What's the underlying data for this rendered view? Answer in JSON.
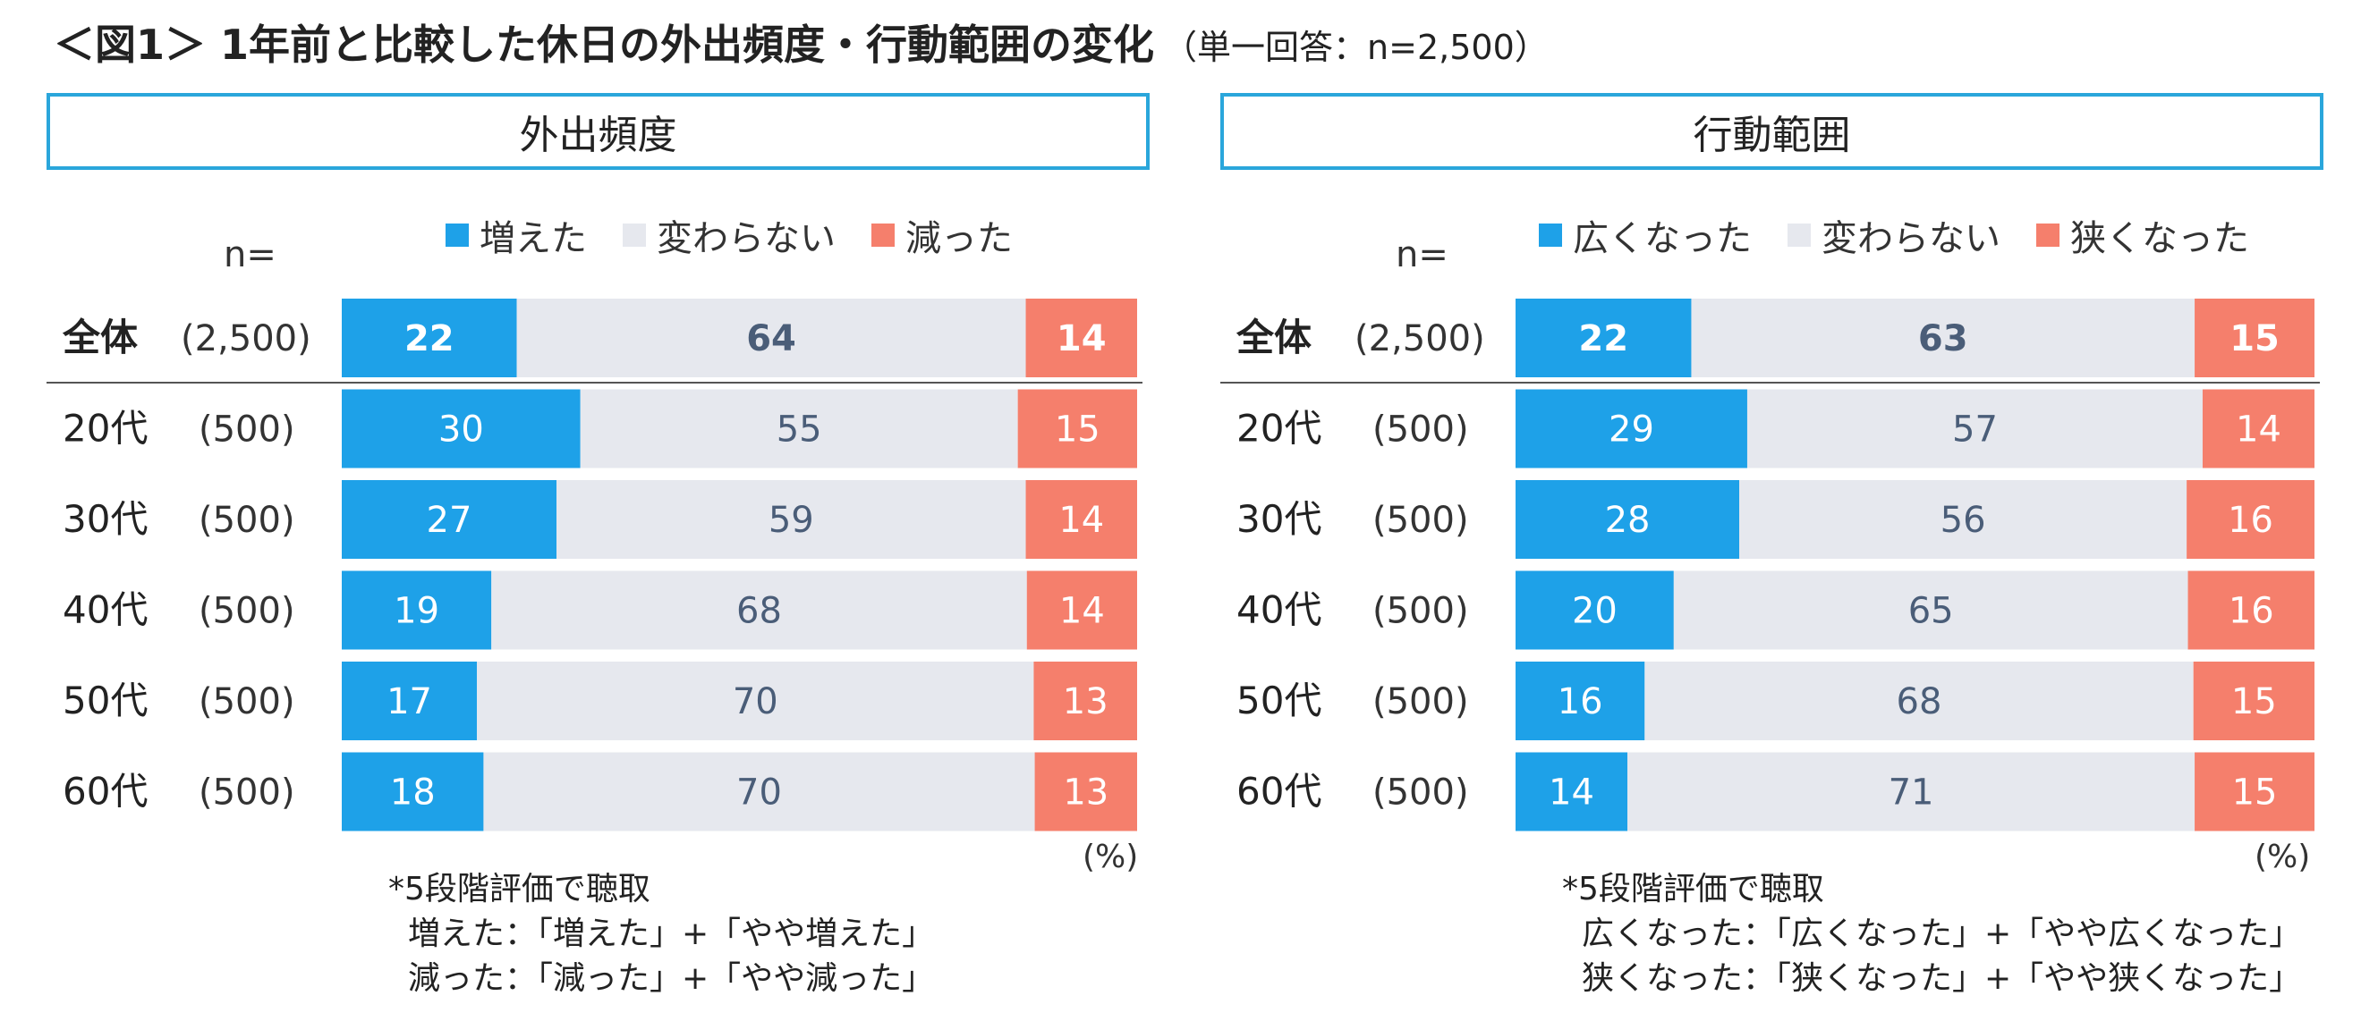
{
  "title": {
    "main": "＜図1＞ 1年前と比較した休日の外出頻度・行動範囲の変化",
    "sub": "（単一回答：n=2,500）"
  },
  "colors": {
    "increase": "#1ea1e8",
    "same": "#e6e8ee",
    "decrease": "#f57f6c",
    "frame": "#2aa6db",
    "same_label": "#4a5d78"
  },
  "n_label": "n=",
  "unit": "(%)",
  "left": {
    "heading": "外出頻度",
    "legend": [
      "増えた",
      "変わらない",
      "減った"
    ],
    "notes": [
      "*5段階評価で聴取",
      "増えた：「増えた」+「やや増えた」",
      "減った：「減った」+「やや減った」"
    ]
  },
  "right": {
    "heading": "行動範囲",
    "legend": [
      "広くなった",
      "変わらない",
      "狭くなった"
    ],
    "notes": [
      "*5段階評価で聴取",
      "広くなった：「広くなった」+「やや広くなった」",
      "狭くなった：「狭くなった」+「やや狭くなった」"
    ]
  },
  "chart_data": [
    {
      "type": "bar",
      "stacked": true,
      "orientation": "horizontal",
      "title": "外出頻度",
      "categories": [
        "全体",
        "20代",
        "30代",
        "40代",
        "50代",
        "60代"
      ],
      "n": [
        "(2,500)",
        "(500)",
        "(500)",
        "(500)",
        "(500)",
        "(500)"
      ],
      "series": [
        {
          "name": "増えた",
          "values": [
            22,
            30,
            27,
            19,
            17,
            18
          ]
        },
        {
          "name": "変わらない",
          "values": [
            64,
            55,
            59,
            68,
            70,
            70
          ]
        },
        {
          "name": "減った",
          "values": [
            14,
            15,
            14,
            14,
            13,
            13
          ]
        }
      ],
      "unit": "(%)"
    },
    {
      "type": "bar",
      "stacked": true,
      "orientation": "horizontal",
      "title": "行動範囲",
      "categories": [
        "全体",
        "20代",
        "30代",
        "40代",
        "50代",
        "60代"
      ],
      "n": [
        "(2,500)",
        "(500)",
        "(500)",
        "(500)",
        "(500)",
        "(500)"
      ],
      "series": [
        {
          "name": "広くなった",
          "values": [
            22,
            29,
            28,
            20,
            16,
            14
          ]
        },
        {
          "name": "変わらない",
          "values": [
            63,
            57,
            56,
            65,
            68,
            71
          ]
        },
        {
          "name": "狭くなった",
          "values": [
            15,
            14,
            16,
            16,
            15,
            15
          ]
        }
      ],
      "unit": "(%)"
    }
  ]
}
